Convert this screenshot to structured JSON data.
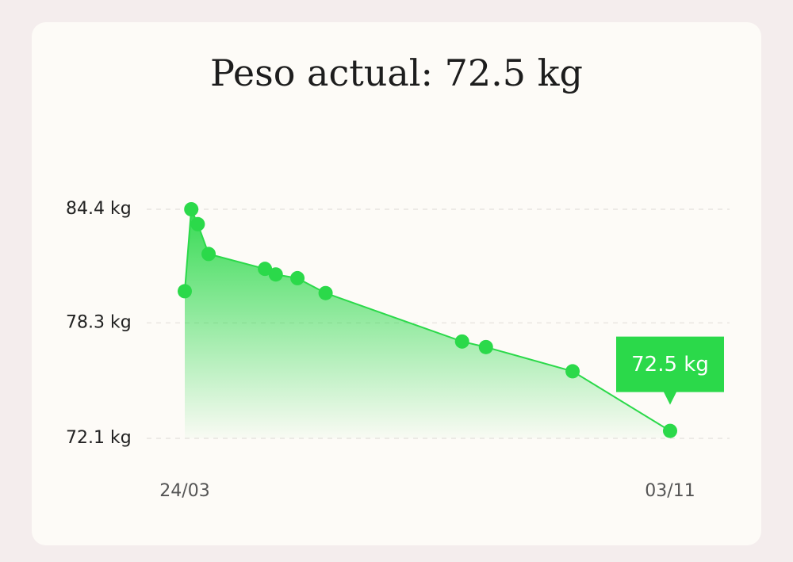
{
  "chart_data": {
    "type": "line",
    "title": "Peso actual: 72.5 kg",
    "x": [
      0,
      3,
      6,
      11,
      37,
      42,
      52,
      65,
      128,
      139,
      179,
      224
    ],
    "xlim": [
      0,
      224
    ],
    "xticks": [
      {
        "value": 0,
        "label": "24/03"
      },
      {
        "value": 224,
        "label": "03/11"
      }
    ],
    "ylim": [
      72.1,
      84.4
    ],
    "yticks": [
      {
        "value": 84.4,
        "label": "84.4 kg"
      },
      {
        "value": 78.3,
        "label": "78.3 kg"
      },
      {
        "value": 72.1,
        "label": "72.1 kg"
      }
    ],
    "grid": true,
    "series": [
      {
        "name": "Peso",
        "color": "#2bd94a",
        "values": [
          80.0,
          84.4,
          83.6,
          82.0,
          81.2,
          80.9,
          80.7,
          79.9,
          77.3,
          77.0,
          75.7,
          72.5
        ],
        "value_labels": [
          null,
          null,
          null,
          null,
          null,
          null,
          null,
          null,
          null,
          null,
          null,
          "72.5 kg"
        ]
      }
    ]
  }
}
